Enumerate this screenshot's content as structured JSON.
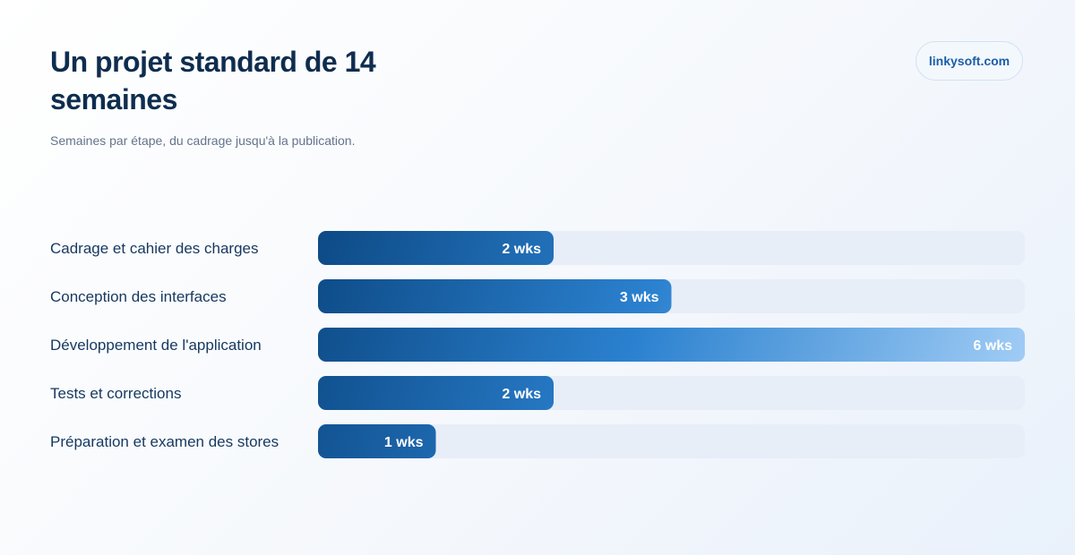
{
  "header": {
    "title": "Un projet standard de 14 semaines",
    "subtitle": "Semaines par étape, du cadrage jusqu'à la publication.",
    "brand": "linkysoft.com"
  },
  "chart_data": {
    "type": "bar",
    "orientation": "horizontal",
    "title": "Un projet standard de 14 semaines",
    "subtitle": "Semaines par étape, du cadrage jusqu'à la publication.",
    "categories": [
      "Cadrage et cahier des charges",
      "Conception des interfaces",
      "Développement de l'application",
      "Tests et corrections",
      "Préparation et examen des stores"
    ],
    "values": [
      2,
      3,
      6,
      2,
      1
    ],
    "value_labels": [
      "2 wks",
      "3 wks",
      "6 wks",
      "2 wks",
      "1 wks"
    ],
    "xlim": [
      0,
      6
    ],
    "grid": false,
    "legend": "none",
    "colors": {
      "track": "#e7eef8",
      "bar_start_dark": "#0d4a86",
      "bar_end_light": "#a9d2f8"
    }
  }
}
